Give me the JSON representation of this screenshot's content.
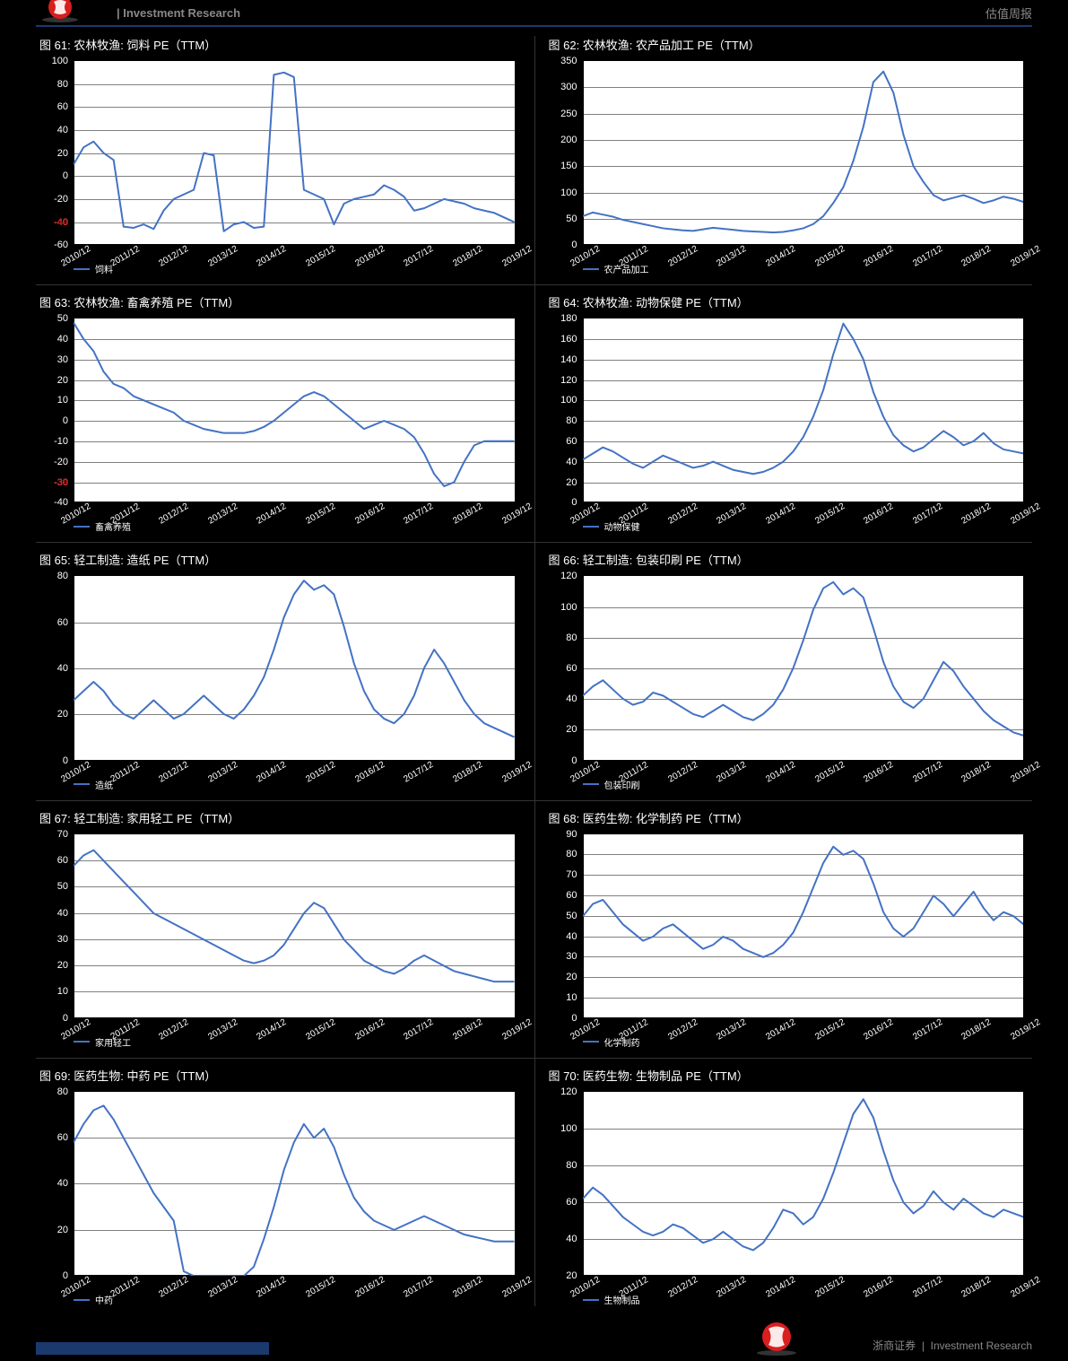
{
  "header": {
    "left": "| Investment Research",
    "right": "估值周报"
  },
  "footer": {
    "brand": "浙商证券",
    "tagline": "Investment Research"
  },
  "style": {
    "background_color": "#000000",
    "line_color": "#4472c4",
    "line_width": 2,
    "plot_background": "#ffffff",
    "grid_color": "#808080",
    "axis_label_color": "#ffffff",
    "current_value_color": "#d91e1e",
    "header_rule_color": "#1a3a6e",
    "xaxis_fontsize": 10,
    "yaxis_fontsize": 11,
    "title_fontsize": 13,
    "xaxis_rotation_deg": -30
  },
  "x_categories": [
    "2010/12",
    "2011/12",
    "2012/12",
    "2013/12",
    "2014/12",
    "2015/12",
    "2016/12",
    "2017/12",
    "2018/12",
    "2019/12"
  ],
  "charts": [
    {
      "id": "c1",
      "title": "图 61: 农林牧渔: 饲料 PE（TTM）",
      "legend": "饲料",
      "y_min": -60,
      "y_max": 100,
      "y_step": 20,
      "current_value": -40,
      "current_idx": 9,
      "values": [
        10,
        25,
        30,
        20,
        14,
        -44,
        -45,
        -42,
        -46,
        -30,
        -20,
        -16,
        -12,
        20,
        18,
        -48,
        -42,
        -40,
        -45,
        -44,
        88,
        90,
        86,
        -12,
        -16,
        -20,
        -42,
        -24,
        -20,
        -18,
        -16,
        -8,
        -12,
        -18,
        -30,
        -28,
        -24,
        -20,
        -22,
        -24,
        -28,
        -30,
        -32,
        -36,
        -40
      ]
    },
    {
      "id": "c2",
      "title": "图 62: 农林牧渔: 农产品加工 PE（TTM）",
      "legend": "农产品加工",
      "y_min": 0,
      "y_max": 350,
      "y_step": 50,
      "current_value": null,
      "current_idx": null,
      "values": [
        55,
        62,
        58,
        54,
        48,
        44,
        40,
        36,
        32,
        30,
        28,
        27,
        30,
        33,
        31,
        29,
        27,
        26,
        25,
        24,
        25,
        28,
        32,
        40,
        55,
        80,
        110,
        160,
        225,
        310,
        330,
        290,
        210,
        150,
        120,
        95,
        85,
        90,
        95,
        88,
        80,
        85,
        92,
        88,
        82
      ]
    },
    {
      "id": "c3",
      "title": "图 63: 农林牧渔: 畜禽养殖 PE（TTM）",
      "legend": "畜禽养殖",
      "y_min": -40,
      "y_max": 50,
      "y_step": 10,
      "current_value": -30,
      "current_idx": 7.8,
      "values": [
        48,
        40,
        34,
        24,
        18,
        16,
        12,
        10,
        8,
        6,
        4,
        0,
        -2,
        -4,
        -5,
        -6,
        -6,
        -6,
        -5,
        -3,
        0,
        4,
        8,
        12,
        14,
        12,
        8,
        4,
        0,
        -4,
        -2,
        0,
        -2,
        -4,
        -8,
        -16,
        -26,
        -32,
        -30,
        -20,
        -12,
        -10,
        -10,
        -10,
        -10
      ]
    },
    {
      "id": "c4",
      "title": "图 64: 农林牧渔: 动物保健 PE（TTM）",
      "legend": "动物保健",
      "y_min": 0,
      "y_max": 180,
      "y_step": 20,
      "current_value": null,
      "current_idx": null,
      "values": [
        42,
        48,
        54,
        50,
        44,
        38,
        34,
        40,
        46,
        42,
        38,
        34,
        36,
        40,
        36,
        32,
        30,
        28,
        30,
        34,
        40,
        50,
        64,
        84,
        110,
        145,
        175,
        160,
        140,
        108,
        84,
        66,
        56,
        50,
        54,
        62,
        70,
        64,
        56,
        60,
        68,
        58,
        52,
        50,
        48
      ]
    },
    {
      "id": "c5",
      "title": "图 65: 轻工制造: 造纸 PE（TTM）",
      "legend": "造纸",
      "y_min": 0,
      "y_max": 80,
      "y_step": 20,
      "current_value": null,
      "current_idx": null,
      "values": [
        26,
        30,
        34,
        30,
        24,
        20,
        18,
        22,
        26,
        22,
        18,
        20,
        24,
        28,
        24,
        20,
        18,
        22,
        28,
        36,
        48,
        62,
        72,
        78,
        74,
        76,
        72,
        58,
        42,
        30,
        22,
        18,
        16,
        20,
        28,
        40,
        48,
        42,
        34,
        26,
        20,
        16,
        14,
        12,
        10
      ]
    },
    {
      "id": "c6",
      "title": "图 66: 轻工制造: 包装印刷 PE（TTM）",
      "legend": "包装印刷",
      "y_min": 0,
      "y_max": 120,
      "y_step": 20,
      "current_value": null,
      "current_idx": null,
      "values": [
        42,
        48,
        52,
        46,
        40,
        36,
        38,
        44,
        42,
        38,
        34,
        30,
        28,
        32,
        36,
        32,
        28,
        26,
        30,
        36,
        46,
        60,
        78,
        98,
        112,
        116,
        108,
        112,
        106,
        86,
        64,
        48,
        38,
        34,
        40,
        52,
        64,
        58,
        48,
        40,
        32,
        26,
        22,
        18,
        16
      ]
    },
    {
      "id": "c7",
      "title": "图 67: 轻工制造: 家用轻工 PE（TTM）",
      "legend": "家用轻工",
      "y_min": 0,
      "y_max": 70,
      "y_step": 10,
      "current_value": null,
      "current_idx": null,
      "values": [
        58,
        62,
        64,
        60,
        56,
        52,
        48,
        44,
        40,
        38,
        36,
        34,
        32,
        30,
        28,
        26,
        24,
        22,
        21,
        22,
        24,
        28,
        34,
        40,
        44,
        42,
        36,
        30,
        26,
        22,
        20,
        18,
        17,
        19,
        22,
        24,
        22,
        20,
        18,
        17,
        16,
        15,
        14,
        14,
        14
      ]
    },
    {
      "id": "c8",
      "title": "图 68: 医药生物: 化学制药 PE（TTM）",
      "legend": "化学制药",
      "y_min": 0,
      "y_max": 90,
      "y_step": 10,
      "current_value": null,
      "current_idx": null,
      "values": [
        50,
        56,
        58,
        52,
        46,
        42,
        38,
        40,
        44,
        46,
        42,
        38,
        34,
        36,
        40,
        38,
        34,
        32,
        30,
        32,
        36,
        42,
        52,
        64,
        76,
        84,
        80,
        82,
        78,
        66,
        52,
        44,
        40,
        44,
        52,
        60,
        56,
        50,
        56,
        62,
        54,
        48,
        52,
        50,
        46
      ]
    },
    {
      "id": "c9",
      "title": "图 69: 医药生物: 中药 PE（TTM）",
      "legend": "中药",
      "y_min": 0,
      "y_max": 80,
      "y_step": 20,
      "current_value": null,
      "current_idx": null,
      "values": [
        58,
        66,
        72,
        74,
        68,
        60,
        52,
        44,
        36,
        30,
        24,
        2,
        0,
        0,
        0,
        0,
        0,
        0,
        4,
        16,
        30,
        46,
        58,
        66,
        60,
        64,
        56,
        44,
        34,
        28,
        24,
        22,
        20,
        22,
        24,
        26,
        24,
        22,
        20,
        18,
        17,
        16,
        15,
        15,
        15
      ]
    },
    {
      "id": "c10",
      "title": "图 70: 医药生物: 生物制品 PE（TTM）",
      "legend": "生物制品",
      "y_min": 20,
      "y_max": 120,
      "y_step": 20,
      "current_value": null,
      "current_idx": null,
      "values": [
        62,
        68,
        64,
        58,
        52,
        48,
        44,
        42,
        44,
        48,
        46,
        42,
        38,
        40,
        44,
        40,
        36,
        34,
        38,
        46,
        56,
        54,
        48,
        52,
        62,
        76,
        92,
        108,
        116,
        106,
        88,
        72,
        60,
        54,
        58,
        66,
        60,
        56,
        62,
        58,
        54,
        52,
        56,
        54,
        52
      ]
    }
  ]
}
